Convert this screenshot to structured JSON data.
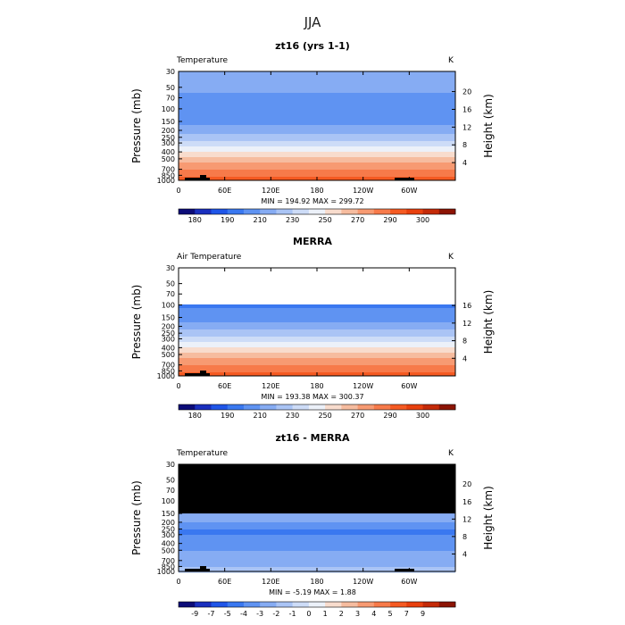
{
  "page_title": "JJA",
  "chart_data": [
    {
      "type": "heatmap",
      "title": "zt16 (yrs 1-1)",
      "variable_label": "Temperature",
      "units": "K",
      "xlabel": "",
      "ylabel": "Pressure (mb)",
      "y2label": "Height (km)",
      "x_ticks": [
        "0",
        "60E",
        "120E",
        "180",
        "120W",
        "60W"
      ],
      "y_ticks": [
        "30",
        "50",
        "70",
        "100",
        "150",
        "200",
        "250",
        "300",
        "400",
        "500",
        "700",
        "850",
        "1000"
      ],
      "y2_ticks": [
        "20",
        "16",
        "12",
        "8",
        "4"
      ],
      "stats": "MIN = 194.92   MAX = 299.72",
      "min": 194.92,
      "max": 299.72,
      "levels_pressure": [
        30,
        50,
        70,
        100,
        150,
        200,
        250,
        300,
        400,
        500,
        700,
        850,
        1000
      ],
      "zonal_mean_temperature": [
        219,
        213,
        207,
        200,
        206,
        216,
        225,
        235,
        251,
        265,
        281,
        289,
        296
      ],
      "colorbar_labels": [
        "180",
        "190",
        "210",
        "230",
        "250",
        "270",
        "290",
        "300"
      ],
      "colorbar_colors": [
        "#0c0c78",
        "#1a2fbe",
        "#1f55e8",
        "#3a78f0",
        "#5f93f2",
        "#86acf3",
        "#aac4f5",
        "#cddcf7",
        "#ecf1f9",
        "#f8dccd",
        "#f6bc9f",
        "#f79a72",
        "#f77a4a",
        "#f55a22",
        "#e8400e",
        "#c42a08",
        "#8c1404"
      ]
    },
    {
      "type": "heatmap",
      "title": "MERRA",
      "variable_label": "Air Temperature",
      "units": "K",
      "xlabel": "",
      "ylabel": "Pressure (mb)",
      "y2label": "Height (km)",
      "x_ticks": [
        "0",
        "60E",
        "120E",
        "180",
        "120W",
        "60W"
      ],
      "y_ticks": [
        "30",
        "50",
        "70",
        "100",
        "150",
        "200",
        "250",
        "300",
        "400",
        "500",
        "700",
        "850",
        "1000"
      ],
      "y2_ticks": [
        "16",
        "12",
        "8",
        "4"
      ],
      "stats": "MIN = 193.38   MAX = 300.37",
      "min": 193.38,
      "max": 300.37,
      "levels_pressure": [
        100,
        150,
        200,
        250,
        300,
        400,
        500,
        700,
        850,
        1000
      ],
      "zonal_mean_temperature": [
        199,
        205,
        216,
        226,
        235,
        251,
        265,
        281,
        289,
        296
      ],
      "colorbar_labels": [
        "180",
        "190",
        "210",
        "230",
        "250",
        "270",
        "290",
        "300"
      ],
      "colorbar_colors": [
        "#0c0c78",
        "#1a2fbe",
        "#1f55e8",
        "#3a78f0",
        "#5f93f2",
        "#86acf3",
        "#aac4f5",
        "#cddcf7",
        "#ecf1f9",
        "#f8dccd",
        "#f6bc9f",
        "#f79a72",
        "#f77a4a",
        "#f55a22",
        "#e8400e",
        "#c42a08",
        "#8c1404"
      ]
    },
    {
      "type": "heatmap",
      "title": "zt16 - MERRA",
      "variable_label": "Temperature",
      "units": "K",
      "xlabel": "",
      "ylabel": "Pressure (mb)",
      "y2label": "Height (km)",
      "x_ticks": [
        "0",
        "60E",
        "120E",
        "180",
        "120W",
        "60W"
      ],
      "y_ticks": [
        "30",
        "50",
        "70",
        "100",
        "150",
        "200",
        "250",
        "300",
        "400",
        "500",
        "700",
        "850",
        "1000"
      ],
      "y2_ticks": [
        "20",
        "16",
        "12",
        "8",
        "4"
      ],
      "stats": "MIN = -5.19   MAX = 1.88",
      "min": -5.19,
      "max": 1.88,
      "levels_pressure": [
        150,
        200,
        250,
        300,
        400,
        500,
        700,
        850,
        1000
      ],
      "zonal_mean_difference": [
        -2,
        -3,
        -4,
        -4,
        -3,
        -3,
        -2,
        -2,
        -1
      ],
      "colorbar_labels": [
        "-9",
        "-7",
        "-5",
        "-4",
        "-3",
        "-2",
        "-1",
        "0",
        "1",
        "2",
        "3",
        "4",
        "5",
        "7",
        "9"
      ],
      "colorbar_colors": [
        "#0c0c78",
        "#1a2fbe",
        "#1f55e8",
        "#3a78f0",
        "#5f93f2",
        "#86acf3",
        "#aac4f5",
        "#cddcf7",
        "#ecf1f9",
        "#f8dccd",
        "#f6bc9f",
        "#f79a72",
        "#f77a4a",
        "#f55a22",
        "#e8400e",
        "#c42a08",
        "#8c1404"
      ]
    }
  ]
}
